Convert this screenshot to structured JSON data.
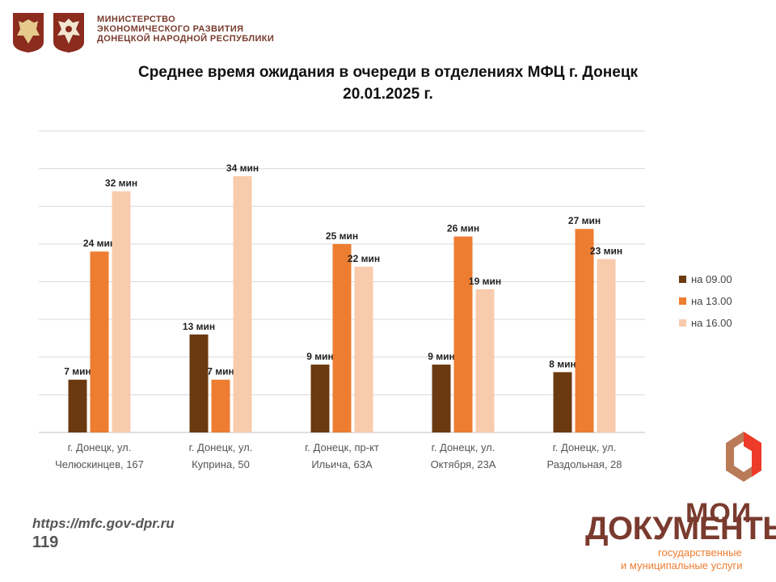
{
  "header": {
    "ministry_line1": "МИНИСТЕРСТВО",
    "ministry_line2": "ЭКОНОМИЧЕСКОГО РАЗВИТИЯ",
    "ministry_line3": "ДОНЕЦКОЙ НАРОДНОЙ РЕСПУБЛИКИ"
  },
  "chart_data": {
    "type": "bar",
    "title": "Среднее время ожидания в очереди в отделениях МФЦ г. Донецк",
    "subtitle": "20.01.2025 г.",
    "categories": [
      [
        "г. Донецк, ул.",
        "Челюскинцев, 167"
      ],
      [
        "г. Донецк, ул.",
        "Куприна, 50"
      ],
      [
        "г. Донецк, пр-кт",
        "Ильича, 63А"
      ],
      [
        "г. Донецк, ул.",
        "Октября, 23А"
      ],
      [
        "г. Донецк, ул.",
        "Раздольная, 28"
      ]
    ],
    "series": [
      {
        "name": "на 09.00",
        "color": "#6b3a10",
        "values": [
          7,
          13,
          9,
          9,
          8
        ],
        "labels": [
          "7 мин",
          "13 мин",
          "9 мин",
          "9 мин",
          "8 мин"
        ]
      },
      {
        "name": "на 13.00",
        "color": "#ed7d31",
        "values": [
          24,
          7,
          25,
          26,
          27
        ],
        "labels": [
          "24 мин",
          "7 мин",
          "25 мин",
          "26 мин",
          "27 мин"
        ]
      },
      {
        "name": "на 16.00",
        "color": "#f8cbad",
        "values": [
          32,
          34,
          22,
          19,
          23
        ],
        "labels": [
          "32 мин",
          "34 мин",
          "22 мин",
          "19 мин",
          "23 мин"
        ]
      }
    ],
    "ylim": [
      0,
      40
    ],
    "grid": true,
    "legend": "right"
  },
  "footer": {
    "url": "https://mfc.gov-dpr.ru",
    "page": "119"
  },
  "brand": {
    "moi": "МОИ",
    "docs": "ДОКУМЕНТЫ",
    "sub1": "государственные",
    "sub2": "и муниципальные услуги"
  }
}
